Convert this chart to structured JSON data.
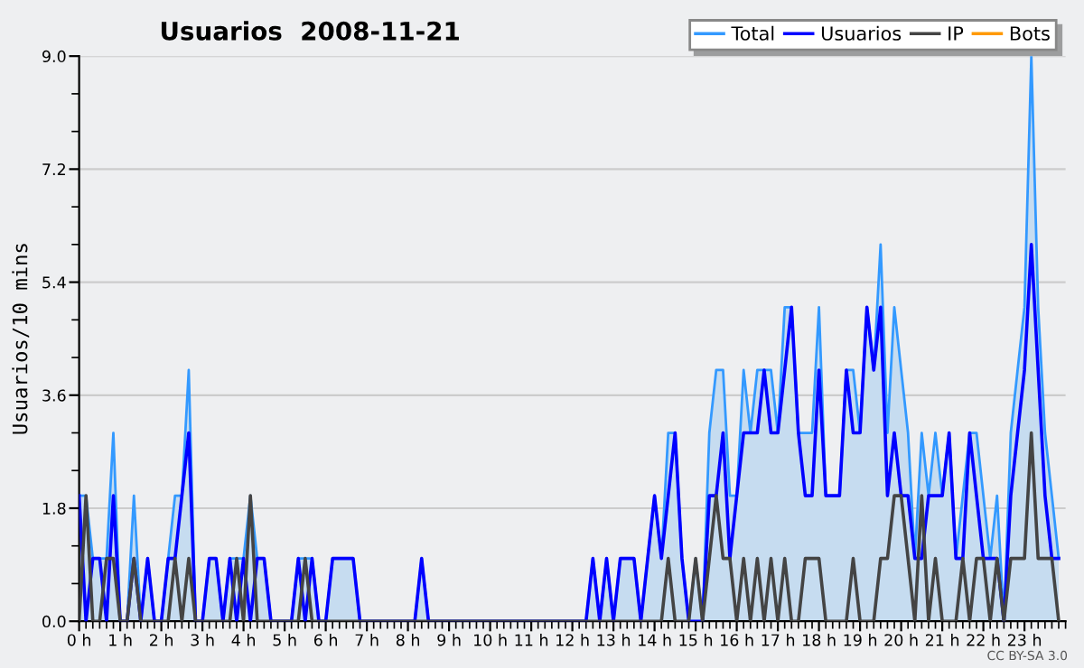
{
  "chart_data": {
    "type": "line",
    "title": "Usuarios  2008-11-21",
    "ylabel": "Usuarios/10 mins",
    "annotations": [
      "CC BY-SA 3.0"
    ],
    "x": [
      0,
      0.167,
      0.333,
      0.5,
      0.667,
      0.833,
      1,
      1.167,
      1.333,
      1.5,
      1.667,
      1.833,
      2,
      2.167,
      2.333,
      2.5,
      2.667,
      2.833,
      3,
      3.167,
      3.333,
      3.5,
      3.667,
      3.833,
      4,
      4.167,
      4.333,
      4.5,
      4.667,
      4.833,
      5,
      5.167,
      5.333,
      5.5,
      5.667,
      5.833,
      6,
      6.167,
      6.333,
      6.5,
      6.667,
      6.833,
      7,
      7.167,
      7.333,
      7.5,
      7.667,
      7.833,
      8,
      8.167,
      8.333,
      8.5,
      8.667,
      8.833,
      9,
      9.167,
      9.333,
      9.5,
      9.667,
      9.833,
      10,
      10.167,
      10.333,
      10.5,
      10.667,
      10.833,
      11,
      11.167,
      11.333,
      11.5,
      11.667,
      11.833,
      12,
      12.167,
      12.333,
      12.5,
      12.667,
      12.833,
      13,
      13.167,
      13.333,
      13.5,
      13.667,
      13.833,
      14,
      14.167,
      14.333,
      14.5,
      14.667,
      14.833,
      15,
      15.167,
      15.333,
      15.5,
      15.667,
      15.833,
      16,
      16.167,
      16.333,
      16.5,
      16.667,
      16.833,
      17,
      17.167,
      17.333,
      17.5,
      17.667,
      17.833,
      18,
      18.167,
      18.333,
      18.5,
      18.667,
      18.833,
      19,
      19.167,
      19.333,
      19.5,
      19.667,
      19.833,
      20,
      20.167,
      20.333,
      20.5,
      20.667,
      20.833,
      21,
      21.167,
      21.333,
      21.5,
      21.667,
      21.833,
      22,
      22.167,
      22.333,
      22.5,
      22.667,
      22.833,
      23,
      23.167,
      23.333,
      23.5,
      23.667,
      23.833
    ],
    "series": [
      {
        "name": "Total",
        "type": "area",
        "color": "#3399ff",
        "values": [
          2,
          2,
          1,
          1,
          1,
          3,
          0,
          0,
          2,
          0,
          1,
          0,
          0,
          1,
          2,
          2,
          4,
          0,
          0,
          1,
          1,
          0,
          1,
          1,
          1,
          2,
          1,
          1,
          0,
          0,
          0,
          0,
          1,
          1,
          1,
          0,
          0,
          1,
          1,
          1,
          1,
          0,
          0,
          0,
          0,
          0,
          0,
          0,
          0,
          0,
          1,
          0,
          0,
          0,
          0,
          0,
          0,
          0,
          0,
          0,
          0,
          0,
          0,
          0,
          0,
          0,
          0,
          0,
          0,
          0,
          0,
          0,
          0,
          0,
          0,
          1,
          0,
          1,
          0,
          1,
          1,
          1,
          0,
          1,
          2,
          1,
          3,
          3,
          1,
          0,
          1,
          0,
          3,
          4,
          4,
          2,
          2,
          4,
          3,
          4,
          4,
          4,
          3,
          5,
          5,
          3,
          3,
          3,
          5,
          2,
          2,
          2,
          4,
          4,
          3,
          5,
          4,
          6,
          3,
          5,
          4,
          3,
          1,
          3,
          2,
          3,
          2,
          3,
          1,
          2,
          3,
          3,
          2,
          1,
          2,
          0,
          3,
          4,
          5,
          9,
          5,
          3,
          2,
          1
        ]
      },
      {
        "name": "Usuarios",
        "color": "#0000ff",
        "values": [
          2,
          0,
          1,
          1,
          0,
          2,
          0,
          0,
          1,
          0,
          1,
          0,
          0,
          1,
          1,
          2,
          3,
          0,
          0,
          1,
          1,
          0,
          1,
          0,
          1,
          0,
          1,
          1,
          0,
          0,
          0,
          0,
          1,
          0,
          1,
          0,
          0,
          1,
          1,
          1,
          1,
          0,
          0,
          0,
          0,
          0,
          0,
          0,
          0,
          0,
          1,
          0,
          0,
          0,
          0,
          0,
          0,
          0,
          0,
          0,
          0,
          0,
          0,
          0,
          0,
          0,
          0,
          0,
          0,
          0,
          0,
          0,
          0,
          0,
          0,
          1,
          0,
          1,
          0,
          1,
          1,
          1,
          0,
          1,
          2,
          1,
          2,
          3,
          1,
          0,
          0,
          0,
          2,
          2,
          3,
          1,
          2,
          3,
          3,
          3,
          4,
          3,
          3,
          4,
          5,
          3,
          2,
          2,
          4,
          2,
          2,
          2,
          4,
          3,
          3,
          5,
          4,
          5,
          2,
          3,
          2,
          2,
          1,
          1,
          2,
          2,
          2,
          3,
          1,
          1,
          3,
          2,
          1,
          1,
          1,
          0,
          2,
          3,
          4,
          6,
          4,
          2,
          1,
          1
        ]
      },
      {
        "name": "IP",
        "color": "#444444",
        "values": [
          0,
          2,
          0,
          0,
          1,
          1,
          0,
          0,
          1,
          0,
          0,
          0,
          0,
          0,
          1,
          0,
          1,
          0,
          0,
          0,
          0,
          0,
          0,
          1,
          0,
          2,
          0,
          0,
          0,
          0,
          0,
          0,
          0,
          1,
          0,
          0,
          0,
          0,
          0,
          0,
          0,
          0,
          0,
          0,
          0,
          0,
          0,
          0,
          0,
          0,
          0,
          0,
          0,
          0,
          0,
          0,
          0,
          0,
          0,
          0,
          0,
          0,
          0,
          0,
          0,
          0,
          0,
          0,
          0,
          0,
          0,
          0,
          0,
          0,
          0,
          0,
          0,
          0,
          0,
          0,
          0,
          0,
          0,
          0,
          0,
          0,
          1,
          0,
          0,
          0,
          1,
          0,
          1,
          2,
          1,
          1,
          0,
          1,
          0,
          1,
          0,
          1,
          0,
          1,
          0,
          0,
          1,
          1,
          1,
          0,
          0,
          0,
          0,
          1,
          0,
          0,
          0,
          1,
          1,
          2,
          2,
          1,
          0,
          2,
          0,
          1,
          0,
          0,
          0,
          1,
          0,
          1,
          1,
          0,
          1,
          0,
          1,
          1,
          1,
          3,
          1,
          1,
          1,
          0
        ]
      },
      {
        "name": "Bots",
        "color": "#ff9900",
        "values": [
          null,
          null,
          null,
          null,
          null,
          null,
          null,
          null,
          null,
          null,
          null,
          null,
          null,
          null,
          null,
          null,
          null,
          null,
          null,
          null,
          null,
          null,
          null,
          null,
          null,
          null,
          null,
          null,
          null,
          null,
          null,
          null,
          null,
          null,
          null,
          null,
          null,
          null,
          null,
          null,
          null,
          null,
          null,
          null,
          null,
          null,
          null,
          null,
          null,
          null,
          null,
          null,
          null,
          null,
          null,
          null,
          null,
          null,
          null,
          null,
          null,
          null,
          null,
          null,
          null,
          null,
          null,
          null,
          null,
          null,
          null,
          null,
          null,
          null,
          null,
          null,
          null,
          null,
          null,
          null,
          null,
          null,
          null,
          null,
          null,
          null,
          null,
          null,
          null,
          null,
          null,
          null,
          null,
          null,
          null,
          null,
          null,
          null,
          null,
          null,
          null,
          null,
          null,
          null,
          null,
          null,
          null,
          null,
          null,
          null,
          null,
          null,
          null,
          null,
          null,
          null,
          null,
          null,
          null,
          null,
          null,
          null,
          null,
          null,
          null,
          null,
          null,
          null,
          null,
          null,
          null,
          null,
          null,
          null,
          null,
          null,
          null,
          null,
          null,
          null,
          null,
          null,
          null,
          null
        ]
      }
    ],
    "xlim": [
      0,
      24
    ],
    "xticks": [
      {
        "value": 0,
        "label": "0 h"
      },
      {
        "value": 1,
        "label": "1 h"
      },
      {
        "value": 2,
        "label": "2 h"
      },
      {
        "value": 3,
        "label": "3 h"
      },
      {
        "value": 4,
        "label": "4 h"
      },
      {
        "value": 5,
        "label": "5 h"
      },
      {
        "value": 6,
        "label": "6 h"
      },
      {
        "value": 7,
        "label": "7 h"
      },
      {
        "value": 8,
        "label": "8 h"
      },
      {
        "value": 9,
        "label": "9 h"
      },
      {
        "value": 10,
        "label": "10 h"
      },
      {
        "value": 11,
        "label": "11 h"
      },
      {
        "value": 12,
        "label": "12 h"
      },
      {
        "value": 13,
        "label": "13 h"
      },
      {
        "value": 14,
        "label": "14 h"
      },
      {
        "value": 15,
        "label": "15 h"
      },
      {
        "value": 16,
        "label": "16 h"
      },
      {
        "value": 17,
        "label": "17 h"
      },
      {
        "value": 18,
        "label": "18 h"
      },
      {
        "value": 19,
        "label": "19 h"
      },
      {
        "value": 20,
        "label": "20 h"
      },
      {
        "value": 21,
        "label": "21 h"
      },
      {
        "value": 22,
        "label": "22 h"
      },
      {
        "value": 23,
        "label": "23 h"
      }
    ],
    "ylim": [
      0,
      9
    ],
    "yticks": [
      {
        "value": 0,
        "label": "0.0"
      },
      {
        "value": 1.8,
        "label": "1.8"
      },
      {
        "value": 3.6,
        "label": "3.6"
      },
      {
        "value": 5.4,
        "label": "5.4"
      },
      {
        "value": 7.2,
        "label": "7.2"
      },
      {
        "value": 9,
        "label": "9.0"
      }
    ],
    "grid": "y",
    "legend": "top right"
  }
}
